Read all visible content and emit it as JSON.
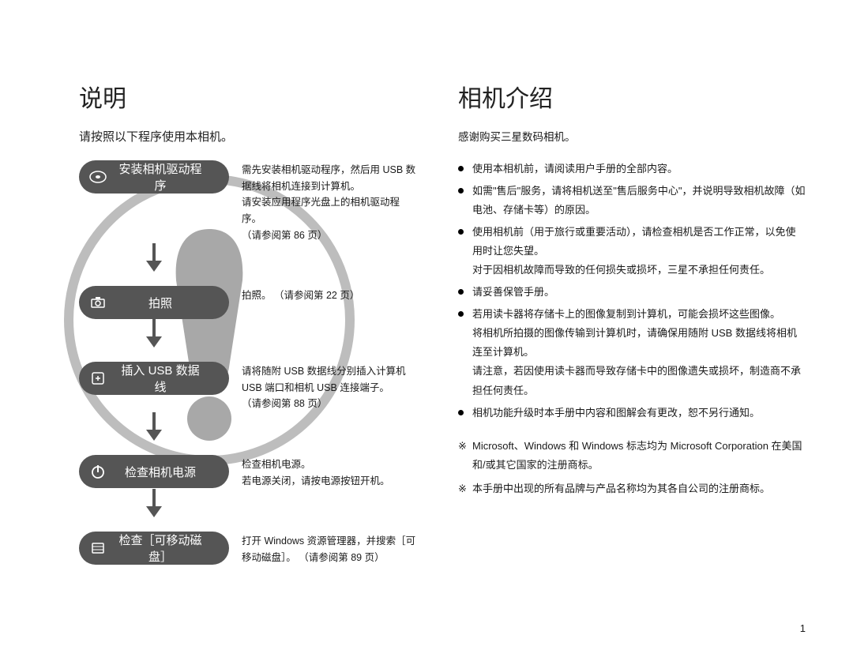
{
  "left": {
    "heading": "说明",
    "subheading": "请按照以下程序使用本相机。",
    "steps": [
      {
        "label": "安装相机驱动程序",
        "desc": "需先安装相机驱动程序，然后用 USB 数据线将相机连接到计算机。\n请安装应用程序光盘上的相机驱动程序。\n（请参阅第 86 页）"
      },
      {
        "label": "拍照",
        "desc": "拍照。 （请参阅第 22 页）"
      },
      {
        "label": "插入 USB 数据线",
        "desc": "请将随附 USB 数据线分别插入计算机 USB 端口和相机 USB 连接端子。\n（请参阅第 88 页）"
      },
      {
        "label": "检查相机电源",
        "desc": "检查相机电源。\n若电源关闭，请按电源按钮开机。"
      },
      {
        "label": "检查［可移动磁盘］",
        "desc": "打开 Windows 资源管理器，并搜索［可移动磁盘］。 （请参阅第 89 页）"
      }
    ]
  },
  "right": {
    "heading": "相机介绍",
    "intro": "感谢购买三星数码相机。",
    "bullets": [
      "使用本相机前，请阅读用户手册的全部内容。",
      "如需\"售后\"服务，请将相机送至\"售后服务中心\"，并说明导致相机故障（如电池、存储卡等）的原因。",
      "使用相机前（用于旅行或重要活动），请检查相机是否工作正常，以免使用时让您失望。\n对于因相机故障而导致的任何损失或损坏，三星不承担任何责任。",
      "请妥善保管手册。",
      "若用读卡器将存储卡上的图像复制到计算机，可能会损坏这些图像。\n将相机所拍摄的图像传输到计算机时，请确保用随附 USB 数据线将相机连至计算机。\n请注意，若因使用读卡器而导致存储卡中的图像遗失或损坏，制造商不承担任何责任。",
      "相机功能升级时本手册中内容和图解会有更改，恕不另行通知。"
    ],
    "asterisks": [
      "Microsoft、Windows 和 Windows 标志均为 Microsoft Corporation 在美国和/或其它国家的注册商标。",
      "本手册中出现的所有品牌与产品名称均为其各自公司的注册商标。"
    ]
  },
  "page_number": "1",
  "colors": {
    "pill_bg": "#555555",
    "pill_text": "#ffffff",
    "text": "#1a1a1a",
    "watermark_ring": "#bdbdbd",
    "watermark_fill": "#a8a8a8"
  }
}
